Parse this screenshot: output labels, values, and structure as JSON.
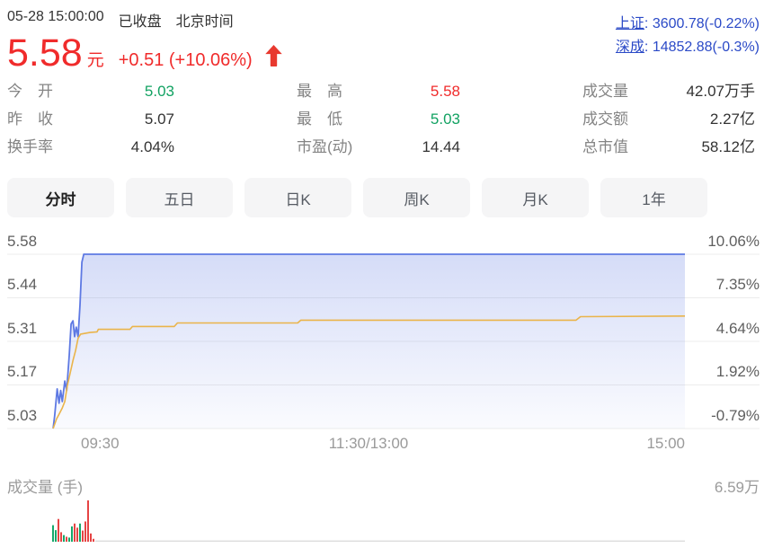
{
  "header": {
    "datetime": "05-28 15:00:00",
    "market_status": "已收盘",
    "timezone": "北京时间",
    "indices": [
      {
        "name": "上证",
        "rest": ": 3600.78(-0.22%)"
      },
      {
        "name": "深成",
        "rest": ": 14852.88(-0.3%)"
      }
    ]
  },
  "quote": {
    "price": "5.58",
    "unit": "元",
    "change": "+0.51 (+10.06%)",
    "direction": "up",
    "arrow_icon": "up-arrow"
  },
  "stats": {
    "cols": [
      {
        "rows": [
          {
            "label": "今　开",
            "value": "5.03",
            "color": "#12a262"
          },
          {
            "label": "昨　收",
            "value": "5.07",
            "color": "#333333"
          },
          {
            "label": "换手率",
            "value": "4.04%",
            "color": "#333333"
          }
        ]
      },
      {
        "rows": [
          {
            "label": "最　高",
            "value": "5.58",
            "color": "#f02b2b"
          },
          {
            "label": "最　低",
            "value": "5.03",
            "color": "#12a262"
          },
          {
            "label": "市盈(动)",
            "value": "14.44",
            "color": "#333333"
          }
        ]
      },
      {
        "rows": [
          {
            "label": "成交量",
            "value": "42.07万手",
            "color": "#333333"
          },
          {
            "label": "成交额",
            "value": "2.27亿",
            "color": "#333333"
          },
          {
            "label": "总市值",
            "value": "58.12亿",
            "color": "#333333"
          }
        ]
      }
    ]
  },
  "tabs": {
    "items": [
      {
        "label": "分时",
        "active": true
      },
      {
        "label": "五日",
        "active": false
      },
      {
        "label": "日K",
        "active": false
      },
      {
        "label": "周K",
        "active": false
      },
      {
        "label": "月K",
        "active": false
      },
      {
        "label": "1年",
        "active": false
      }
    ]
  },
  "colors": {
    "up_red": "#f02b2b",
    "down_green": "#12a262",
    "index_link_blue": "#2b4ac7",
    "price_line_blue": "#5e79e3",
    "avg_line_yellow": "#eab44a",
    "volume_red": "#e64444",
    "volume_green": "#16a86b",
    "gridline": "#ececec"
  },
  "chart_data": {
    "type": "line",
    "x_axis": {
      "labels": [
        "09:30",
        "11:30/13:00",
        "15:00"
      ]
    },
    "y_axis_left": {
      "labels": [
        "5.58",
        "5.44",
        "5.31",
        "5.17",
        "5.03"
      ],
      "min": 5.03,
      "max": 5.58
    },
    "y_axis_right": {
      "labels": [
        "10.06%",
        "7.35%",
        "4.64%",
        "1.92%",
        "-0.79%"
      ]
    },
    "prev_close": 5.07,
    "grid": true,
    "series": [
      {
        "name": "price",
        "color": "#5e79e3",
        "fill": true,
        "points": [
          [
            0.0015,
            5.03
          ],
          [
            0.004,
            5.07
          ],
          [
            0.008,
            5.155
          ],
          [
            0.011,
            5.11
          ],
          [
            0.0135,
            5.15
          ],
          [
            0.016,
            5.115
          ],
          [
            0.02,
            5.18
          ],
          [
            0.023,
            5.15
          ],
          [
            0.027,
            5.26
          ],
          [
            0.03,
            5.36
          ],
          [
            0.033,
            5.37
          ],
          [
            0.0355,
            5.32
          ],
          [
            0.038,
            5.35
          ],
          [
            0.041,
            5.32
          ],
          [
            0.044,
            5.42
          ],
          [
            0.047,
            5.555
          ],
          [
            0.05,
            5.58
          ],
          [
            1,
            5.58
          ]
        ]
      },
      {
        "name": "avg",
        "color": "#eab44a",
        "fill": false,
        "points": [
          [
            0.0015,
            5.03
          ],
          [
            0.007,
            5.06
          ],
          [
            0.011,
            5.075
          ],
          [
            0.016,
            5.095
          ],
          [
            0.02,
            5.115
          ],
          [
            0.024,
            5.165
          ],
          [
            0.028,
            5.2
          ],
          [
            0.033,
            5.245
          ],
          [
            0.037,
            5.275
          ],
          [
            0.041,
            5.315
          ],
          [
            0.045,
            5.328
          ],
          [
            0.06,
            5.333
          ],
          [
            0.071,
            5.335
          ],
          [
            0.073,
            5.343
          ],
          [
            0.123,
            5.343
          ],
          [
            0.127,
            5.352
          ],
          [
            0.193,
            5.352
          ],
          [
            0.198,
            5.363
          ],
          [
            0.388,
            5.363
          ],
          [
            0.393,
            5.372
          ],
          [
            0.828,
            5.372
          ],
          [
            0.835,
            5.383
          ],
          [
            1,
            5.385
          ]
        ]
      }
    ],
    "volume": {
      "label": "成交量 (手)",
      "max_label": "6.59万",
      "bars": [
        [
          0.4,
          "g"
        ],
        [
          0.28,
          "g"
        ],
        [
          0.55,
          "r"
        ],
        [
          0.23,
          "r"
        ],
        [
          0.16,
          "g"
        ],
        [
          0.12,
          "r"
        ],
        [
          0.1,
          "g"
        ],
        [
          0.37,
          "g"
        ],
        [
          0.44,
          "r"
        ],
        [
          0.34,
          "r"
        ],
        [
          0.44,
          "g"
        ],
        [
          0.27,
          "r"
        ],
        [
          0.49,
          "r"
        ],
        [
          1.0,
          "r"
        ],
        [
          0.2,
          "r"
        ],
        [
          0.07,
          "r"
        ]
      ],
      "tail_height_frac": 0.03
    }
  }
}
